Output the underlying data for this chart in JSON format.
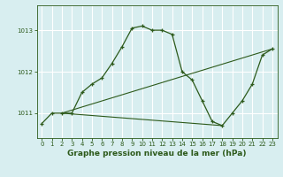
{
  "bg_color": "#d8eef0",
  "grid_color": "#ffffff",
  "line_color": "#2d5a1b",
  "marker_color": "#2d5a1b",
  "title": "Graphe pression niveau de la mer (hPa)",
  "xlim": [
    -0.5,
    23.5
  ],
  "ylim": [
    1010.4,
    1013.6
  ],
  "yticks": [
    1011,
    1012,
    1013
  ],
  "xticks": [
    0,
    1,
    2,
    3,
    4,
    5,
    6,
    7,
    8,
    9,
    10,
    11,
    12,
    13,
    14,
    15,
    16,
    17,
    18,
    19,
    20,
    21,
    22,
    23
  ],
  "series": [
    {
      "x": [
        0,
        1,
        2,
        3,
        4,
        5,
        6,
        7,
        8,
        9,
        10,
        11,
        12,
        13,
        14,
        15,
        16,
        17,
        18,
        19,
        20,
        21,
        22,
        23
      ],
      "y": [
        1010.75,
        1011.0,
        1011.0,
        1011.0,
        1011.5,
        1011.7,
        1011.85,
        1012.2,
        1012.6,
        1013.05,
        1013.1,
        1013.0,
        1013.0,
        1012.9,
        1012.0,
        1011.8,
        1011.3,
        1010.8,
        1010.7,
        1011.0,
        1011.3,
        1011.7,
        1012.4,
        1012.55
      ]
    },
    {
      "x": [
        2,
        23
      ],
      "y": [
        1011.0,
        1012.55
      ]
    },
    {
      "x": [
        2,
        18
      ],
      "y": [
        1011.0,
        1010.7
      ]
    }
  ],
  "title_fontsize": 6.5,
  "tick_fontsize": 5.0
}
